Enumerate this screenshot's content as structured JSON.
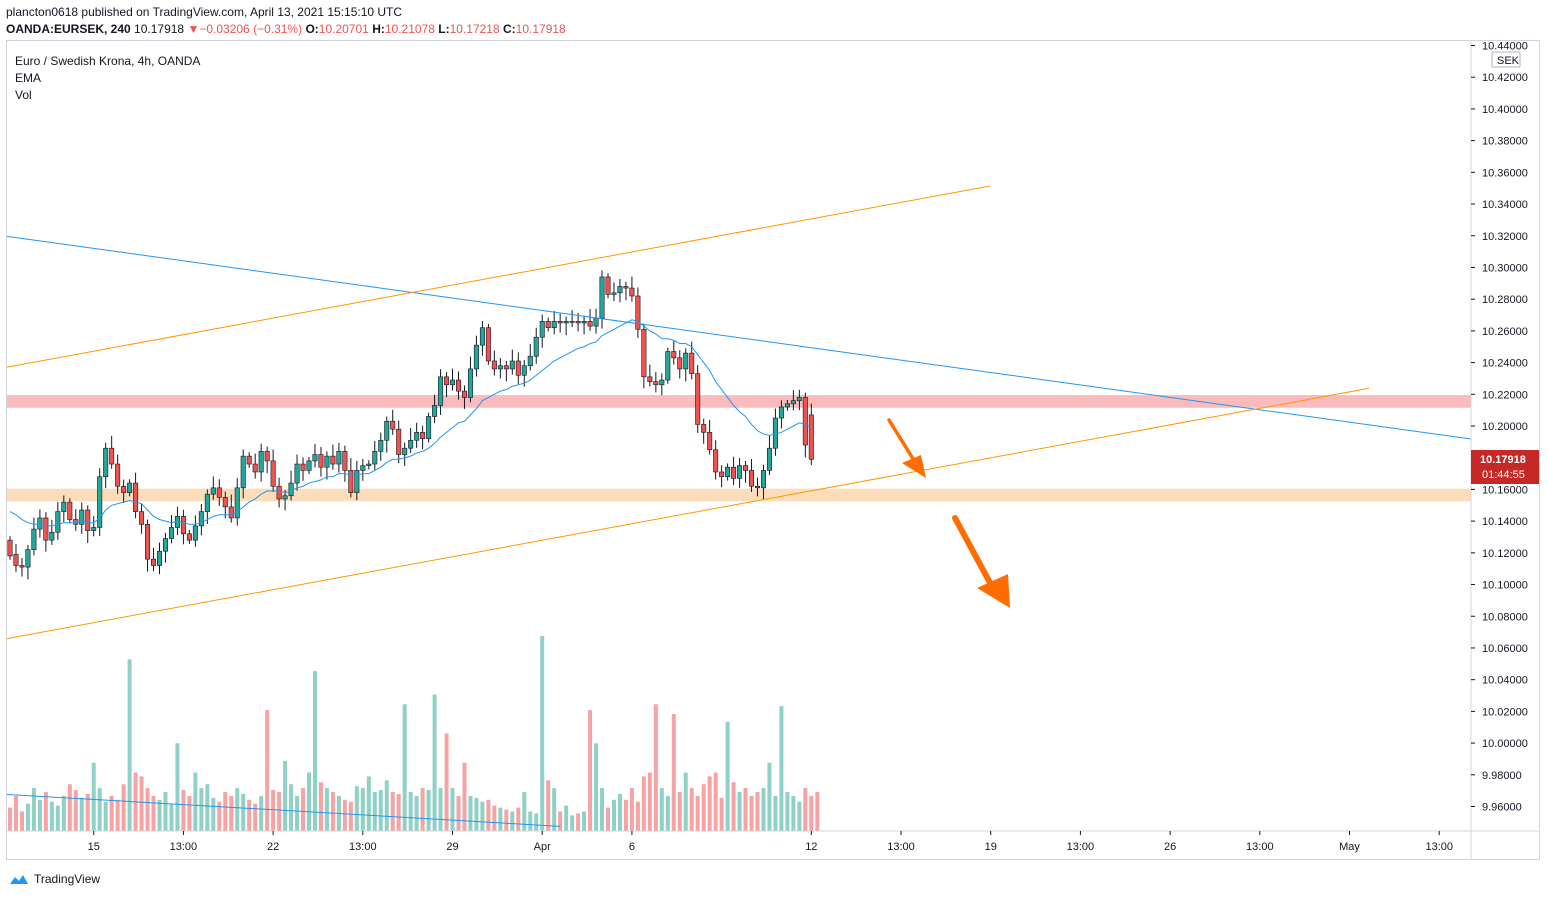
{
  "header": {
    "line1": "plancton0618 published on TradingView.com, April 13, 2021 15:15:10 UTC",
    "symbol": "OANDA:EURSEK, 240",
    "price": "10.17918",
    "arrow": "▼",
    "change": "−0.03206 (−0.31%)",
    "o_label": "O:",
    "o_val": "10.20701",
    "h_label": "H:",
    "h_val": "10.21078",
    "l_label": "L:",
    "l_val": "10.17218",
    "c_label": "C:",
    "c_val": "10.17918"
  },
  "legend": {
    "title": "Euro / Swedish Krona, 4h, OANDA",
    "ema": "EMA",
    "vol": "Vol"
  },
  "price_badge": {
    "price": "10.17918",
    "countdown": "01:44:55"
  },
  "footer": {
    "brand": "TradingView"
  },
  "colors": {
    "up": "#26a69a",
    "down": "#ef5350",
    "ema": "#2196f3",
    "trendline_blue": "#2196f3",
    "trendline_orange": "#ff9800",
    "resistance_zone": "#f8b4b4",
    "support_zone": "#fcd9b4",
    "arrow": "#ff6d00",
    "volume_up": "#8fd1c7",
    "volume_down": "#f5a3a3"
  },
  "chart_data": {
    "type": "candlestick",
    "title": "Euro / Swedish Krona, 4h, OANDA",
    "currency": "SEK",
    "ylim": [
      9.945,
      10.445
    ],
    "y_ticks": [
      "10.44000",
      "10.42000",
      "10.40000",
      "10.38000",
      "10.36000",
      "10.34000",
      "10.32000",
      "10.30000",
      "10.28000",
      "10.26000",
      "10.24000",
      "10.22000",
      "10.20000",
      "10.18000",
      "10.16000",
      "10.14000",
      "10.12000",
      "10.10000",
      "10.08000",
      "10.06000",
      "10.04000",
      "10.02000",
      "10.00000",
      "9.98000",
      "9.96000"
    ],
    "x_ticks": [
      {
        "label": "15",
        "i": 14
      },
      {
        "label": "13:00",
        "i": 29
      },
      {
        "label": "22",
        "i": 44
      },
      {
        "label": "13:00",
        "i": 59
      },
      {
        "label": "29",
        "i": 74
      },
      {
        "label": "Apr",
        "i": 89
      },
      {
        "label": "6",
        "i": 104
      },
      {
        "label": "12",
        "i": 134
      },
      {
        "label": "13:00",
        "i": 149
      },
      {
        "label": "19",
        "i": 164
      },
      {
        "label": "13:00",
        "i": 179
      },
      {
        "label": "26",
        "i": 194
      },
      {
        "label": "13:00",
        "i": 209
      },
      {
        "label": "May",
        "i": 224
      },
      {
        "label": "13:00",
        "i": 239
      }
    ],
    "bar_count_visible": 242,
    "closes": [
      10.118,
      10.112,
      10.111,
      10.122,
      10.135,
      10.142,
      10.128,
      10.133,
      10.146,
      10.152,
      10.141,
      10.138,
      10.147,
      10.134,
      10.136,
      10.168,
      10.186,
      10.176,
      10.162,
      10.158,
      10.164,
      10.146,
      10.138,
      10.116,
      10.112,
      10.121,
      10.129,
      10.136,
      10.143,
      10.132,
      10.128,
      10.137,
      10.146,
      10.157,
      10.161,
      10.155,
      10.149,
      10.142,
      10.161,
      10.181,
      10.176,
      10.171,
      10.184,
      10.178,
      10.162,
      10.154,
      10.156,
      10.164,
      10.176,
      10.172,
      10.178,
      10.182,
      10.174,
      10.181,
      10.176,
      10.184,
      10.172,
      10.158,
      10.172,
      10.175,
      10.176,
      10.184,
      10.191,
      10.203,
      10.198,
      10.182,
      10.186,
      10.191,
      10.196,
      10.192,
      10.206,
      10.213,
      10.231,
      10.226,
      10.229,
      10.222,
      10.218,
      10.236,
      10.251,
      10.262,
      10.241,
      10.236,
      10.238,
      10.236,
      10.241,
      10.232,
      10.238,
      10.244,
      10.256,
      10.266,
      10.262,
      10.266,
      10.265,
      10.266,
      10.266,
      10.265,
      10.266,
      10.263,
      10.268,
      10.294,
      10.283,
      10.284,
      10.288,
      10.287,
      10.282,
      10.261,
      10.231,
      10.228,
      10.226,
      10.229,
      10.247,
      10.243,
      10.236,
      10.246,
      10.233,
      10.201,
      10.196,
      10.185,
      10.171,
      10.168,
      10.174,
      10.167,
      10.175,
      10.172,
      10.162,
      10.161,
      10.172,
      10.186,
      10.205,
      10.212,
      10.214,
      10.216,
      10.218,
      10.188,
      10.179
    ],
    "opens": [
      10.128,
      10.119,
      10.112,
      10.111,
      10.122,
      10.135,
      10.142,
      10.128,
      10.133,
      10.146,
      10.152,
      10.141,
      10.138,
      10.147,
      10.134,
      10.136,
      10.168,
      10.186,
      10.176,
      10.162,
      10.158,
      10.164,
      10.146,
      10.138,
      10.116,
      10.112,
      10.121,
      10.129,
      10.136,
      10.143,
      10.132,
      10.128,
      10.137,
      10.146,
      10.157,
      10.161,
      10.155,
      10.149,
      10.142,
      10.161,
      10.181,
      10.176,
      10.171,
      10.184,
      10.178,
      10.162,
      10.154,
      10.156,
      10.164,
      10.176,
      10.172,
      10.178,
      10.182,
      10.174,
      10.181,
      10.176,
      10.184,
      10.172,
      10.158,
      10.172,
      10.175,
      10.176,
      10.184,
      10.191,
      10.203,
      10.198,
      10.182,
      10.186,
      10.191,
      10.196,
      10.192,
      10.206,
      10.213,
      10.231,
      10.226,
      10.229,
      10.222,
      10.218,
      10.236,
      10.251,
      10.262,
      10.241,
      10.236,
      10.238,
      10.236,
      10.241,
      10.232,
      10.238,
      10.244,
      10.256,
      10.266,
      10.262,
      10.266,
      10.265,
      10.266,
      10.266,
      10.265,
      10.266,
      10.263,
      10.268,
      10.294,
      10.283,
      10.284,
      10.288,
      10.287,
      10.282,
      10.261,
      10.231,
      10.228,
      10.226,
      10.229,
      10.247,
      10.243,
      10.236,
      10.246,
      10.233,
      10.201,
      10.196,
      10.185,
      10.171,
      10.168,
      10.174,
      10.167,
      10.175,
      10.172,
      10.162,
      10.161,
      10.172,
      10.186,
      10.205,
      10.212,
      10.214,
      10.216,
      10.218,
      10.207
    ],
    "highs_offset": 0.006,
    "lows_offset": 0.006,
    "ema": [
      10.146,
      10.144,
      10.141,
      10.139,
      10.138,
      10.138,
      10.137,
      10.137,
      10.138,
      10.139,
      10.139,
      10.139,
      10.14,
      10.139,
      10.139,
      10.142,
      10.147,
      10.15,
      10.151,
      10.152,
      10.153,
      10.152,
      10.151,
      10.147,
      10.143,
      10.141,
      10.14,
      10.139,
      10.14,
      10.139,
      10.138,
      10.138,
      10.139,
      10.141,
      10.143,
      10.144,
      10.144,
      10.144,
      10.146,
      10.149,
      10.152,
      10.154,
      10.157,
      10.159,
      10.159,
      10.159,
      10.158,
      10.159,
      10.161,
      10.162,
      10.164,
      10.165,
      10.166,
      10.168,
      10.168,
      10.17,
      10.17,
      10.169,
      10.169,
      10.17,
      10.17,
      10.172,
      10.174,
      10.177,
      10.179,
      10.179,
      10.18,
      10.181,
      10.183,
      10.184,
      10.186,
      10.189,
      10.193,
      10.196,
      10.199,
      10.202,
      10.203,
      10.207,
      10.211,
      10.216,
      10.218,
      10.22,
      10.222,
      10.223,
      10.225,
      10.226,
      10.227,
      10.229,
      10.232,
      10.235,
      10.238,
      10.241,
      10.243,
      10.245,
      10.247,
      10.249,
      10.25,
      10.252,
      10.253,
      10.257,
      10.259,
      10.261,
      10.263,
      10.265,
      10.267,
      10.266,
      10.263,
      10.26,
      10.258,
      10.255,
      10.255,
      10.254,
      10.252,
      10.252,
      10.25,
      10.245,
      10.24,
      10.235,
      10.228,
      10.223,
      10.218,
      10.213,
      10.209,
      10.206,
      10.201,
      10.197,
      10.195,
      10.194,
      10.195,
      10.196,
      10.198,
      10.2,
      10.202,
      10.201,
      10.199
    ],
    "volume": [
      0.12,
      0.18,
      0.1,
      0.14,
      0.22,
      0.16,
      0.2,
      0.15,
      0.13,
      0.18,
      0.24,
      0.21,
      0.17,
      0.19,
      0.35,
      0.22,
      0.15,
      0.18,
      0.16,
      0.24,
      0.88,
      0.3,
      0.28,
      0.22,
      0.18,
      0.16,
      0.2,
      0.14,
      0.45,
      0.21,
      0.18,
      0.3,
      0.22,
      0.24,
      0.17,
      0.15,
      0.2,
      0.18,
      0.22,
      0.19,
      0.16,
      0.14,
      0.18,
      0.62,
      0.21,
      0.2,
      0.36,
      0.24,
      0.18,
      0.22,
      0.3,
      0.82,
      0.25,
      0.22,
      0.2,
      0.18,
      0.16,
      0.15,
      0.23,
      0.22,
      0.28,
      0.2,
      0.21,
      0.26,
      0.2,
      0.19,
      0.65,
      0.2,
      0.18,
      0.22,
      0.21,
      0.7,
      0.22,
      0.5,
      0.22,
      0.18,
      0.35,
      0.18,
      0.17,
      0.15,
      0.16,
      0.13,
      0.12,
      0.11,
      0.1,
      0.12,
      0.2,
      0.1,
      0.09,
      1.0,
      0.26,
      0.22,
      0.1,
      0.13,
      0.08,
      0.09,
      0.1,
      0.62,
      0.45,
      0.22,
      0.12,
      0.16,
      0.19,
      0.16,
      0.22,
      0.15,
      0.28,
      0.3,
      0.65,
      0.22,
      0.18,
      0.6,
      0.2,
      0.3,
      0.22,
      0.18,
      0.24,
      0.28,
      0.3,
      0.17,
      0.56,
      0.25,
      0.2,
      0.22,
      0.18,
      0.2,
      0.22,
      0.35,
      0.18,
      0.64,
      0.2,
      0.18,
      0.15,
      0.22,
      0.18,
      0.2
    ]
  }
}
